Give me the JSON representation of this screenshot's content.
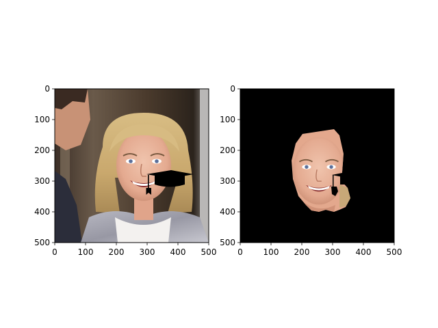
{
  "figure": {
    "background": "#ffffff"
  },
  "chart_data": [
    {
      "type": "image",
      "content": "photo of a smiling woman with shoulder-length blonde hair, with a black graduation-cap sticker drawn over the right side of her face",
      "xlim": [
        0,
        500
      ],
      "ylim": [
        500,
        0
      ],
      "xticks": [
        0,
        100,
        200,
        300,
        400,
        500
      ],
      "yticks": [
        0,
        100,
        200,
        300,
        400,
        500
      ],
      "xtick_labels": [
        "0",
        "100",
        "200",
        "300",
        "400",
        "500"
      ],
      "ytick_labels": [
        "0",
        "100",
        "200",
        "300",
        "400",
        "500"
      ],
      "overlay": {
        "icon": "graduation-cap-icon",
        "color": "#000000",
        "x_range": [
          300,
          445
        ],
        "y_range": [
          265,
          340
        ]
      }
    },
    {
      "type": "image",
      "content": "segmented face only, all other pixels black, with the graduation-cap sticker partially kept",
      "background": "#000000",
      "xlim": [
        0,
        500
      ],
      "ylim": [
        500,
        0
      ],
      "xticks": [
        0,
        100,
        200,
        300,
        400,
        500
      ],
      "yticks": [
        0,
        100,
        200,
        300,
        400,
        500
      ],
      "xtick_labels": [
        "0",
        "100",
        "200",
        "300",
        "400",
        "500"
      ],
      "ytick_labels": [
        "0",
        "100",
        "200",
        "300",
        "400",
        "500"
      ],
      "face_region": {
        "x_range": [
          170,
          370
        ],
        "y_range": [
          130,
          400
        ]
      },
      "overlay": {
        "icon": "graduation-cap-icon",
        "color": "#000000",
        "x_range": [
          300,
          350
        ],
        "y_range": [
          275,
          335
        ]
      }
    }
  ]
}
